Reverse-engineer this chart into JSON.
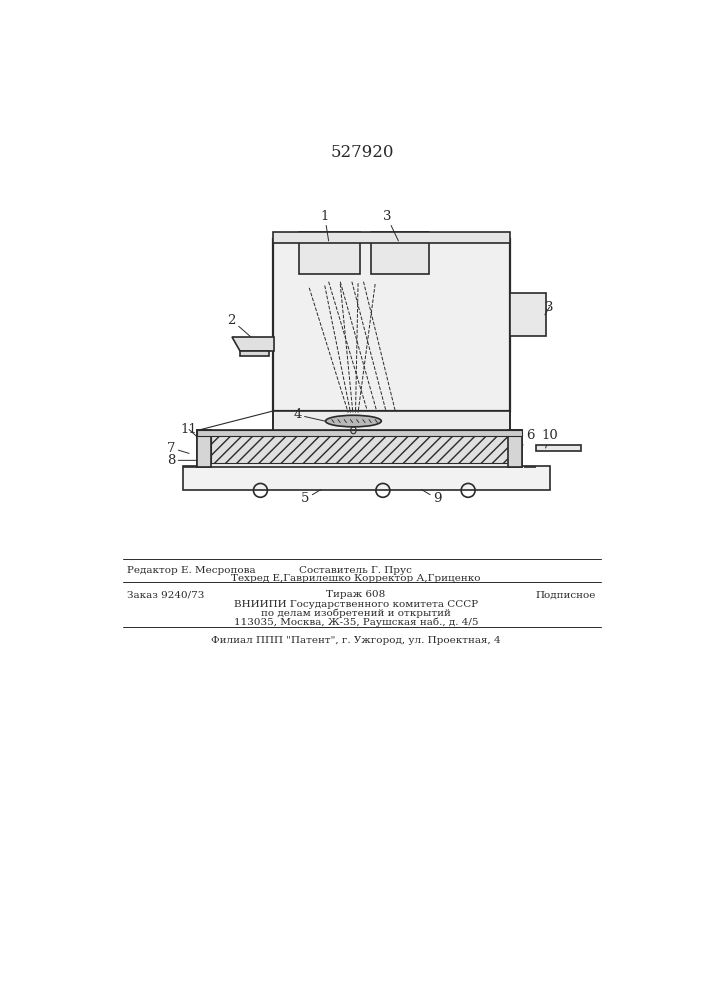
{
  "title_number": "527920",
  "bg_color": "#ffffff",
  "line_color": "#2a2a2a",
  "footer": {
    "line1_left": "Редактор Е. Месропова",
    "line1_center": "Составитель Г. Прус",
    "line2_center": "Техред Е,Гаврилешко Корректор А,Гриценко",
    "line3_left": "Заказ 9240/73",
    "line3_center": "Тираж 608",
    "line3_right": "Подписное",
    "line4_center": "ВНИИПИ Государственного комитета СССР",
    "line5_center": "по делам изобретений и открытий",
    "line6_center": "113035, Москва, Ж-35, Раушская наб., д. 4/5",
    "line7_center": "Филиал ППП \"Патент\", г. Ужгород, ул. Проектная, 4"
  }
}
